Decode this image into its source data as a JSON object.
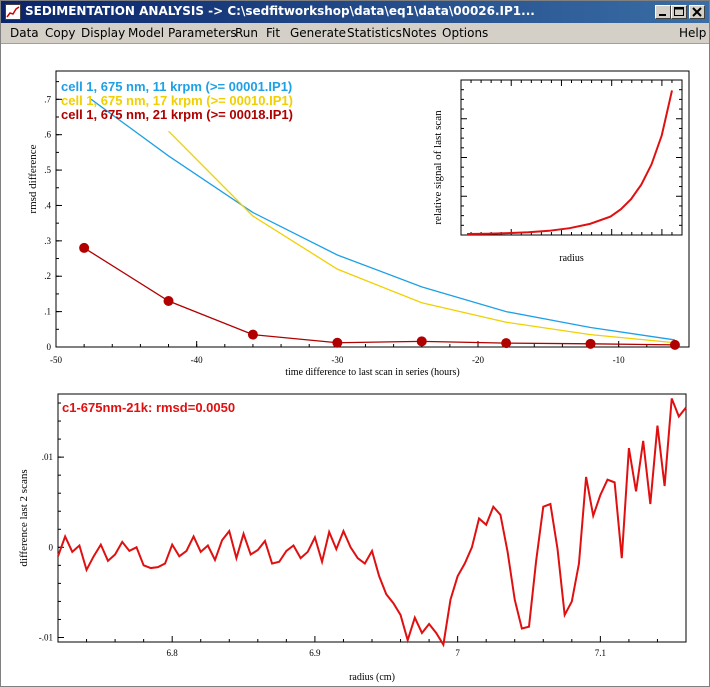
{
  "window": {
    "title": "SEDIMENTATION ANALYSIS -> C:\\sedfitworkshop\\data\\eq1\\data\\00026.IP1..."
  },
  "menu": {
    "items": [
      "Data",
      "Copy",
      "Display",
      "Model",
      "Parameters",
      "Run",
      "Fit",
      "Generate",
      "Statistics",
      "Notes",
      "Options"
    ],
    "help": "Help"
  },
  "icons": {
    "app": "sedfit-app-icon",
    "minimize": "minimize-icon",
    "maximize": "maximize-icon",
    "close": "close-icon"
  },
  "colors": {
    "titlebar": "#0a246a",
    "series1": "#1ea0e6",
    "series2": "#f0d000",
    "series3": "#b00000",
    "residual": "#e01010"
  },
  "chart_data": [
    {
      "type": "line",
      "xlabel": "time difference to last scan in series (hours)",
      "ylabel": "rmsd difference",
      "xlim": [
        -50,
        -5
      ],
      "ylim": [
        0,
        0.78
      ],
      "xticks": [
        -50,
        -40,
        -30,
        -20,
        -10
      ],
      "yticks": [
        0,
        0.1,
        0.2,
        0.3,
        0.4,
        0.5,
        0.6,
        0.7
      ],
      "legend_position": "top-left",
      "series": [
        {
          "name": "cell 1, 675 nm, 11 krpm (>= 00001.IP1)",
          "color": "#1ea0e6",
          "x": [
            -47.5,
            -42,
            -36,
            -30,
            -24,
            -18,
            -12,
            -6
          ],
          "y": [
            0.7,
            0.54,
            0.38,
            0.26,
            0.17,
            0.1,
            0.055,
            0.02
          ]
        },
        {
          "name": "cell 1, 675 nm, 17 krpm (>= 00010.IP1)",
          "color": "#f0d000",
          "x": [
            -42,
            -36,
            -30,
            -24,
            -18,
            -12,
            -6
          ],
          "y": [
            0.61,
            0.37,
            0.22,
            0.125,
            0.07,
            0.035,
            0.012
          ]
        },
        {
          "name": "cell 1, 675 nm, 21 krpm (>= 00018.IP1)",
          "color": "#b00000",
          "markers": true,
          "x": [
            -48,
            -42,
            -36,
            -30,
            -24,
            -18,
            -12,
            -6
          ],
          "y": [
            0.28,
            0.13,
            0.035,
            0.012,
            0.016,
            0.011,
            0.009,
            0.006
          ]
        }
      ]
    },
    {
      "type": "line",
      "xlabel": "radius",
      "ylabel": "relative signal of last scan",
      "series": [
        {
          "color": "#e01010",
          "x": [
            0,
            0.1,
            0.2,
            0.3,
            0.4,
            0.5,
            0.6,
            0.7,
            0.75,
            0.8,
            0.85,
            0.9,
            0.95,
            1.0
          ],
          "y": [
            0.0,
            0.002,
            0.006,
            0.012,
            0.022,
            0.04,
            0.07,
            0.12,
            0.17,
            0.24,
            0.34,
            0.48,
            0.68,
            0.99
          ]
        }
      ]
    },
    {
      "type": "line",
      "title": "c1-675nm-21k: rmsd=0.0050",
      "xlabel": "radius (cm)",
      "ylabel": "difference last 2 scans",
      "xlim": [
        6.72,
        7.16
      ],
      "ylim": [
        -0.0105,
        0.017
      ],
      "xticks": [
        6.8,
        6.9,
        7,
        7.1
      ],
      "yticks": [
        -0.01,
        0,
        0.01
      ],
      "series": [
        {
          "name": "c1-675nm-21k",
          "color": "#e01010",
          "x": [
            6.72,
            6.725,
            6.73,
            6.735,
            6.74,
            6.745,
            6.75,
            6.755,
            6.76,
            6.765,
            6.77,
            6.775,
            6.78,
            6.785,
            6.79,
            6.795,
            6.8,
            6.805,
            6.81,
            6.815,
            6.82,
            6.825,
            6.83,
            6.835,
            6.84,
            6.845,
            6.85,
            6.855,
            6.86,
            6.865,
            6.87,
            6.875,
            6.88,
            6.885,
            6.89,
            6.895,
            6.9,
            6.905,
            6.91,
            6.915,
            6.92,
            6.925,
            6.93,
            6.935,
            6.94,
            6.945,
            6.95,
            6.955,
            6.96,
            6.965,
            6.97,
            6.975,
            6.98,
            6.985,
            6.99,
            6.995,
            7.0,
            7.005,
            7.01,
            7.015,
            7.02,
            7.025,
            7.03,
            7.035,
            7.04,
            7.045,
            7.05,
            7.055,
            7.06,
            7.065,
            7.07,
            7.075,
            7.08,
            7.085,
            7.09,
            7.095,
            7.1,
            7.105,
            7.11,
            7.115,
            7.12,
            7.125,
            7.13,
            7.135,
            7.14,
            7.145,
            7.15,
            7.155,
            7.16
          ],
          "y": [
            -0.001,
            0.0012,
            -0.0005,
            0.0002,
            -0.0025,
            -0.001,
            0.0003,
            -0.0015,
            -0.0008,
            0.0006,
            -0.0004,
            0.0,
            -0.002,
            -0.0023,
            -0.0022,
            -0.0018,
            0.0003,
            -0.001,
            -0.0004,
            0.0012,
            -0.0005,
            0.0002,
            -0.0014,
            0.0008,
            0.0018,
            -0.0012,
            0.0015,
            -0.0008,
            -0.0003,
            0.0007,
            -0.0018,
            -0.0016,
            -0.0004,
            0.0002,
            -0.0012,
            -0.0005,
            0.0011,
            -0.0016,
            0.0017,
            -0.0002,
            0.0018,
            0.0,
            -0.0012,
            -0.0018,
            -0.0004,
            -0.0032,
            -0.0052,
            -0.0062,
            -0.0075,
            -0.0103,
            -0.0078,
            -0.0095,
            -0.0085,
            -0.0095,
            -0.0108,
            -0.0058,
            -0.0032,
            -0.0018,
            0.0,
            0.0032,
            0.0025,
            0.0045,
            0.0036,
            -0.0005,
            -0.0058,
            -0.009,
            -0.0088,
            -0.0015,
            0.0045,
            0.0048,
            -0.0002,
            -0.0075,
            -0.006,
            -0.0018,
            0.0078,
            0.0035,
            0.0058,
            0.0075,
            0.0072,
            -0.0012,
            0.011,
            0.0062,
            0.0118,
            0.0048,
            0.0135,
            0.0068,
            0.0165,
            0.0145,
            0.0155
          ]
        }
      ]
    }
  ]
}
